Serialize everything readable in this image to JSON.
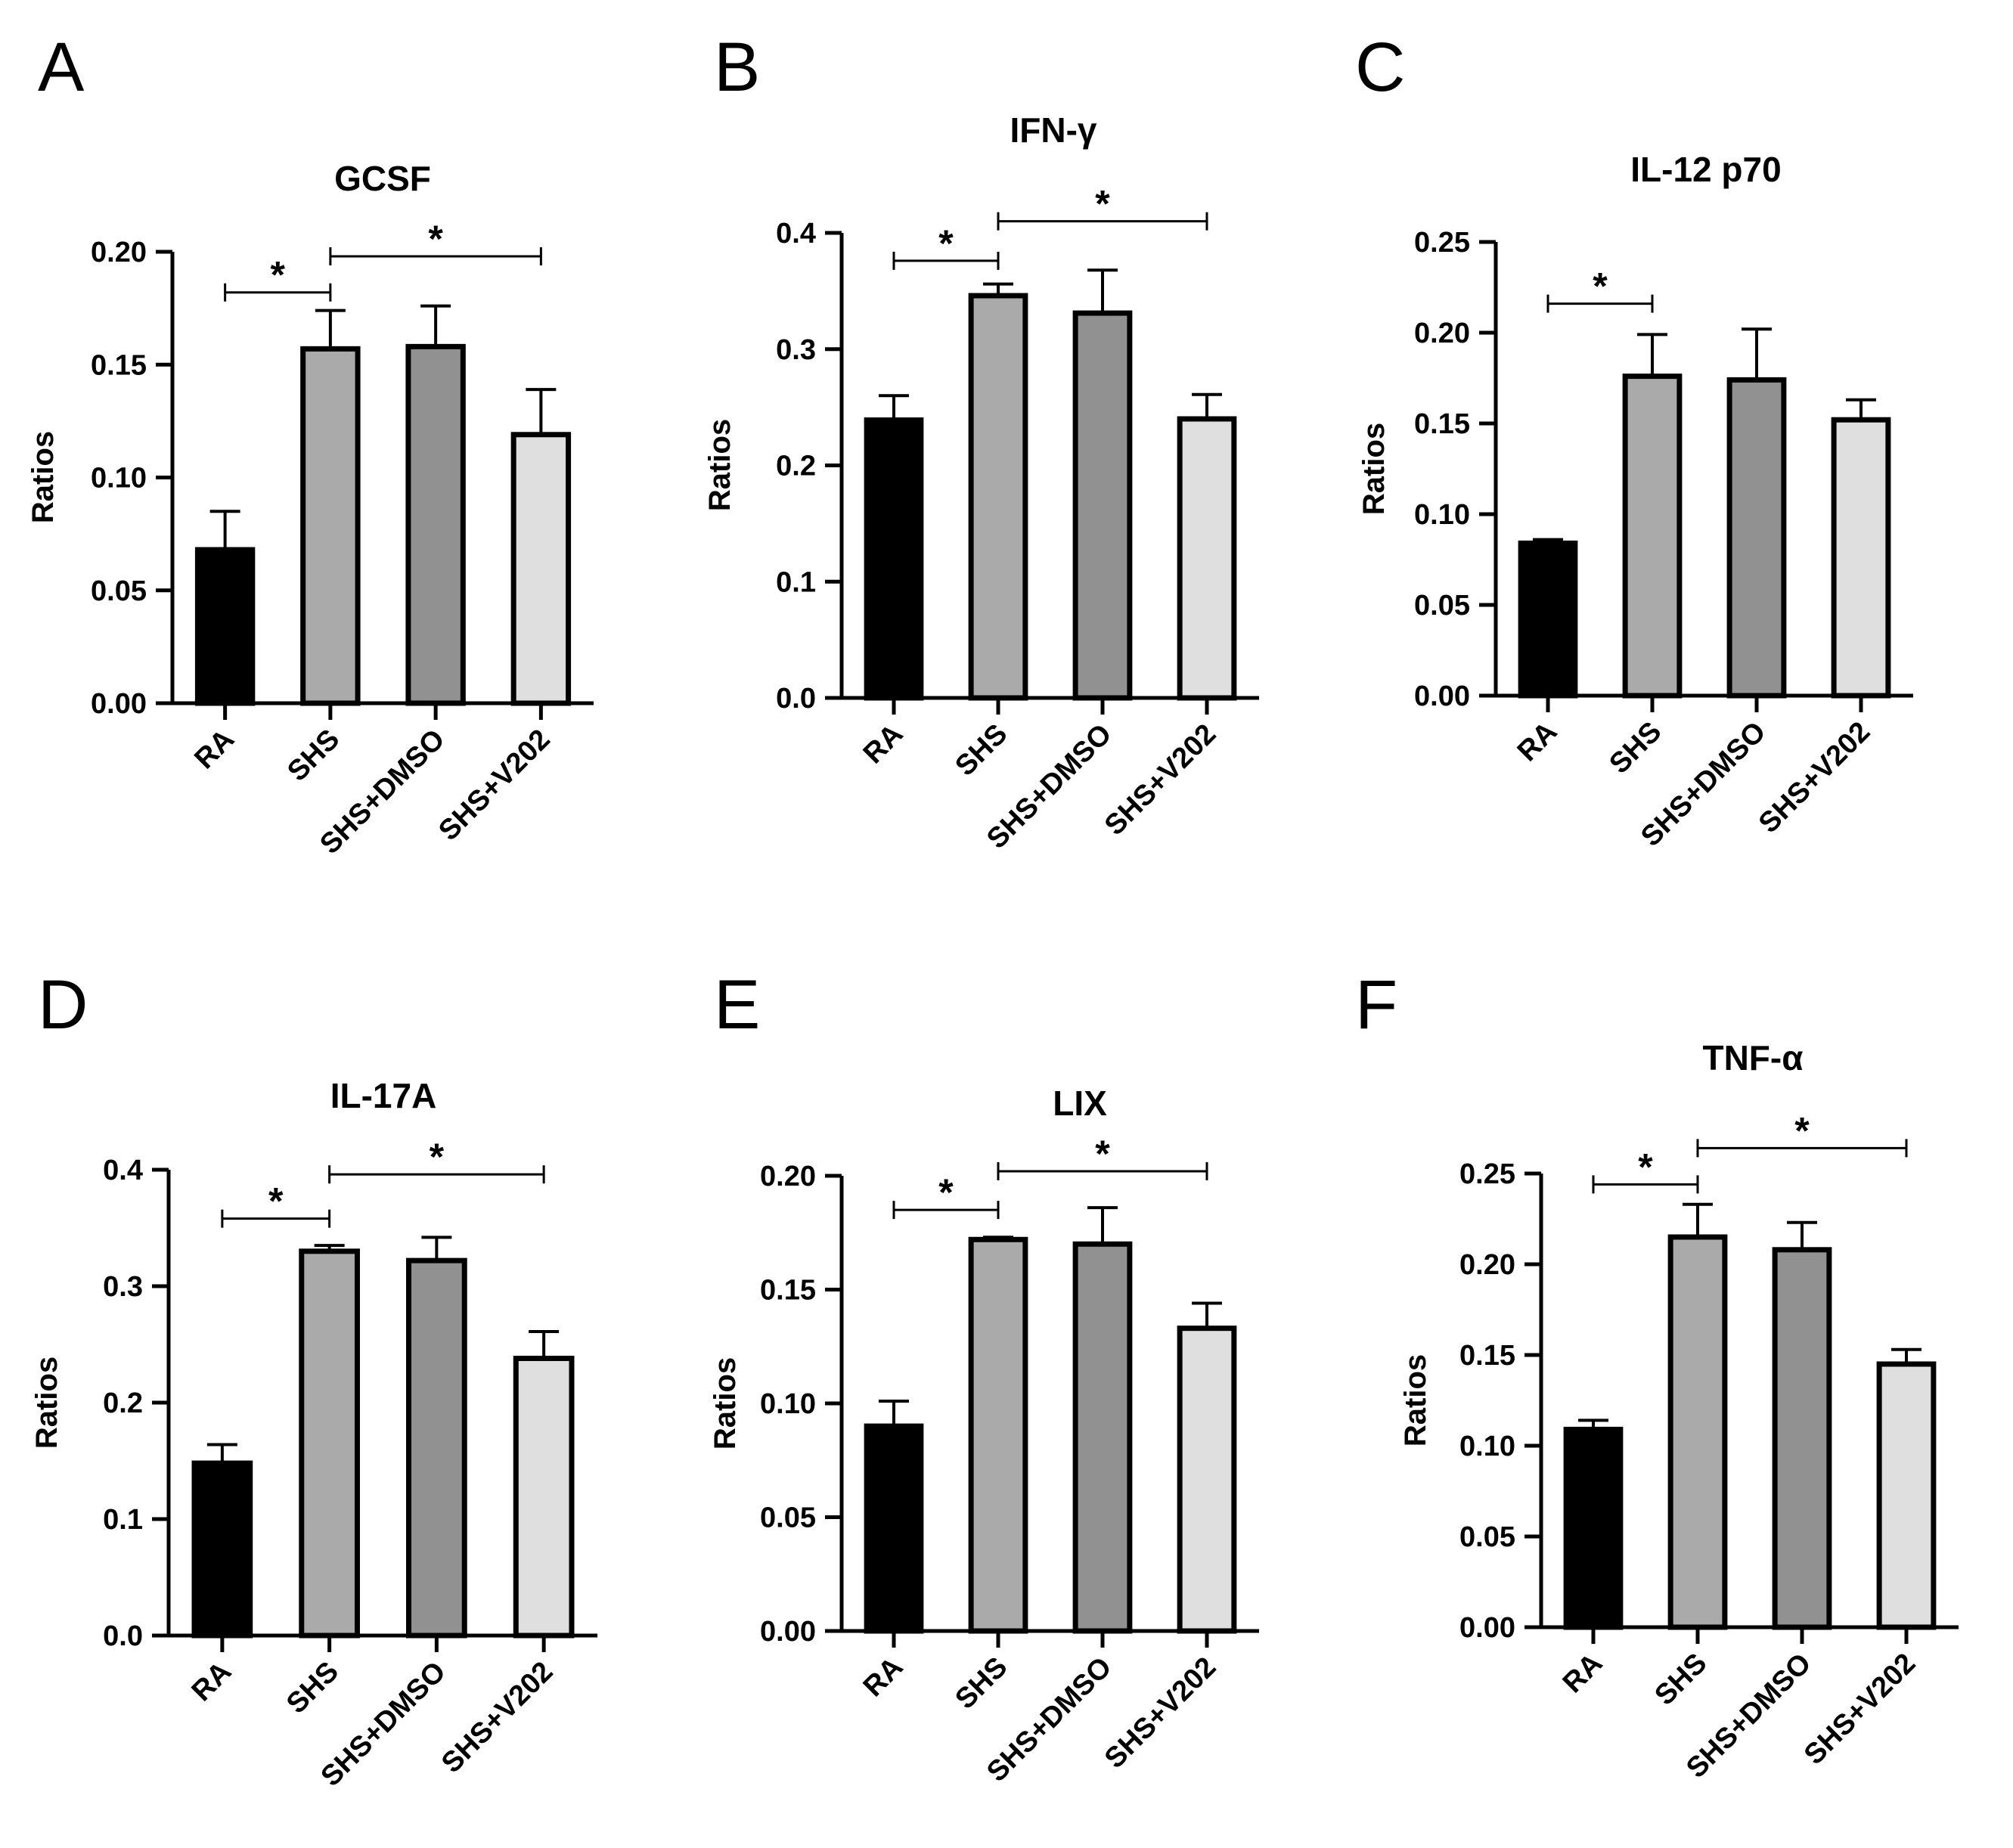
{
  "chart_data": [
    {
      "panel": "A",
      "type": "bar",
      "title": "GCSF",
      "ylabel": "Ratios",
      "categories": [
        "RA",
        "SHS",
        "SHS+DMSO",
        "SHS+V202"
      ],
      "values": [
        0.068,
        0.157,
        0.158,
        0.119
      ],
      "errors": [
        0.017,
        0.017,
        0.018,
        0.02
      ],
      "colors": [
        "#000000",
        "#aaaaaa",
        "#919191",
        "#dfdfdf"
      ],
      "ylim": [
        0,
        0.2
      ],
      "yticks": [
        "0.00",
        "0.05",
        "0.10",
        "0.15",
        "0.20"
      ],
      "significance": [
        {
          "from": 0,
          "to": 1,
          "label": "*",
          "y": 0.182
        },
        {
          "from": 1,
          "to": 3,
          "label": "*",
          "y": 0.198
        }
      ]
    },
    {
      "panel": "B",
      "type": "bar",
      "title": "IFN-γ",
      "ylabel": "Ratios",
      "categories": [
        "RA",
        "SHS",
        "SHS+DMSO",
        "SHS+V202"
      ],
      "values": [
        0.239,
        0.346,
        0.331,
        0.24
      ],
      "errors": [
        0.021,
        0.01,
        0.037,
        0.021
      ],
      "colors": [
        "#000000",
        "#aaaaaa",
        "#919191",
        "#dfdfdf"
      ],
      "ylim": [
        0,
        0.4
      ],
      "yticks": [
        "0.0",
        "0.1",
        "0.2",
        "0.3",
        "0.4"
      ],
      "significance": [
        {
          "from": 0,
          "to": 1,
          "label": "*",
          "y": 0.376
        },
        {
          "from": 1,
          "to": 3,
          "label": "*",
          "y": 0.41
        }
      ]
    },
    {
      "panel": "C",
      "type": "bar",
      "title": "IL-12 p70",
      "ylabel": "Ratios",
      "categories": [
        "RA",
        "SHS",
        "SHS+DMSO",
        "SHS+V202"
      ],
      "values": [
        0.084,
        0.176,
        0.174,
        0.152
      ],
      "errors": [
        0.002,
        0.023,
        0.028,
        0.011
      ],
      "colors": [
        "#000000",
        "#aaaaaa",
        "#919191",
        "#dfdfdf"
      ],
      "ylim": [
        0,
        0.25
      ],
      "yticks": [
        "0.00",
        "0.05",
        "0.10",
        "0.15",
        "0.20",
        "0.25"
      ],
      "significance": [
        {
          "from": 0,
          "to": 1,
          "label": "*",
          "y": 0.216
        }
      ]
    },
    {
      "panel": "D",
      "type": "bar",
      "title": "IL-17A",
      "ylabel": "Ratios",
      "categories": [
        "RA",
        "SHS",
        "SHS+DMSO",
        "SHS+V202"
      ],
      "values": [
        0.148,
        0.33,
        0.322,
        0.238
      ],
      "errors": [
        0.016,
        0.005,
        0.02,
        0.023
      ],
      "colors": [
        "#000000",
        "#aaaaaa",
        "#919191",
        "#dfdfdf"
      ],
      "ylim": [
        0,
        0.4
      ],
      "yticks": [
        "0.0",
        "0.1",
        "0.2",
        "0.3",
        "0.4"
      ],
      "significance": [
        {
          "from": 0,
          "to": 1,
          "label": "*",
          "y": 0.358
        },
        {
          "from": 1,
          "to": 3,
          "label": "*",
          "y": 0.396
        }
      ]
    },
    {
      "panel": "E",
      "type": "bar",
      "title": "LIX",
      "ylabel": "Ratios",
      "categories": [
        "RA",
        "SHS",
        "SHS+DMSO",
        "SHS+V202"
      ],
      "values": [
        0.09,
        0.172,
        0.17,
        0.133
      ],
      "errors": [
        0.011,
        0.001,
        0.016,
        0.011
      ],
      "colors": [
        "#000000",
        "#aaaaaa",
        "#919191",
        "#dfdfdf"
      ],
      "ylim": [
        0,
        0.2
      ],
      "yticks": [
        "0.00",
        "0.05",
        "0.10",
        "0.15",
        "0.20"
      ],
      "significance": [
        {
          "from": 0,
          "to": 1,
          "label": "*",
          "y": 0.185
        },
        {
          "from": 1,
          "to": 3,
          "label": "*",
          "y": 0.202
        }
      ]
    },
    {
      "panel": "F",
      "type": "bar",
      "title": "TNF-α",
      "ylabel": "Ratios",
      "categories": [
        "RA",
        "SHS",
        "SHS+DMSO",
        "SHS+V202"
      ],
      "values": [
        0.109,
        0.215,
        0.208,
        0.145
      ],
      "errors": [
        0.005,
        0.018,
        0.015,
        0.008
      ],
      "colors": [
        "#000000",
        "#aaaaaa",
        "#919191",
        "#dfdfdf"
      ],
      "ylim": [
        0,
        0.25
      ],
      "yticks": [
        "0.00",
        "0.05",
        "0.10",
        "0.15",
        "0.20",
        "0.25"
      ],
      "significance": [
        {
          "from": 0,
          "to": 1,
          "label": "*",
          "y": 0.244
        },
        {
          "from": 1,
          "to": 3,
          "label": "*",
          "y": 0.264
        }
      ]
    }
  ]
}
